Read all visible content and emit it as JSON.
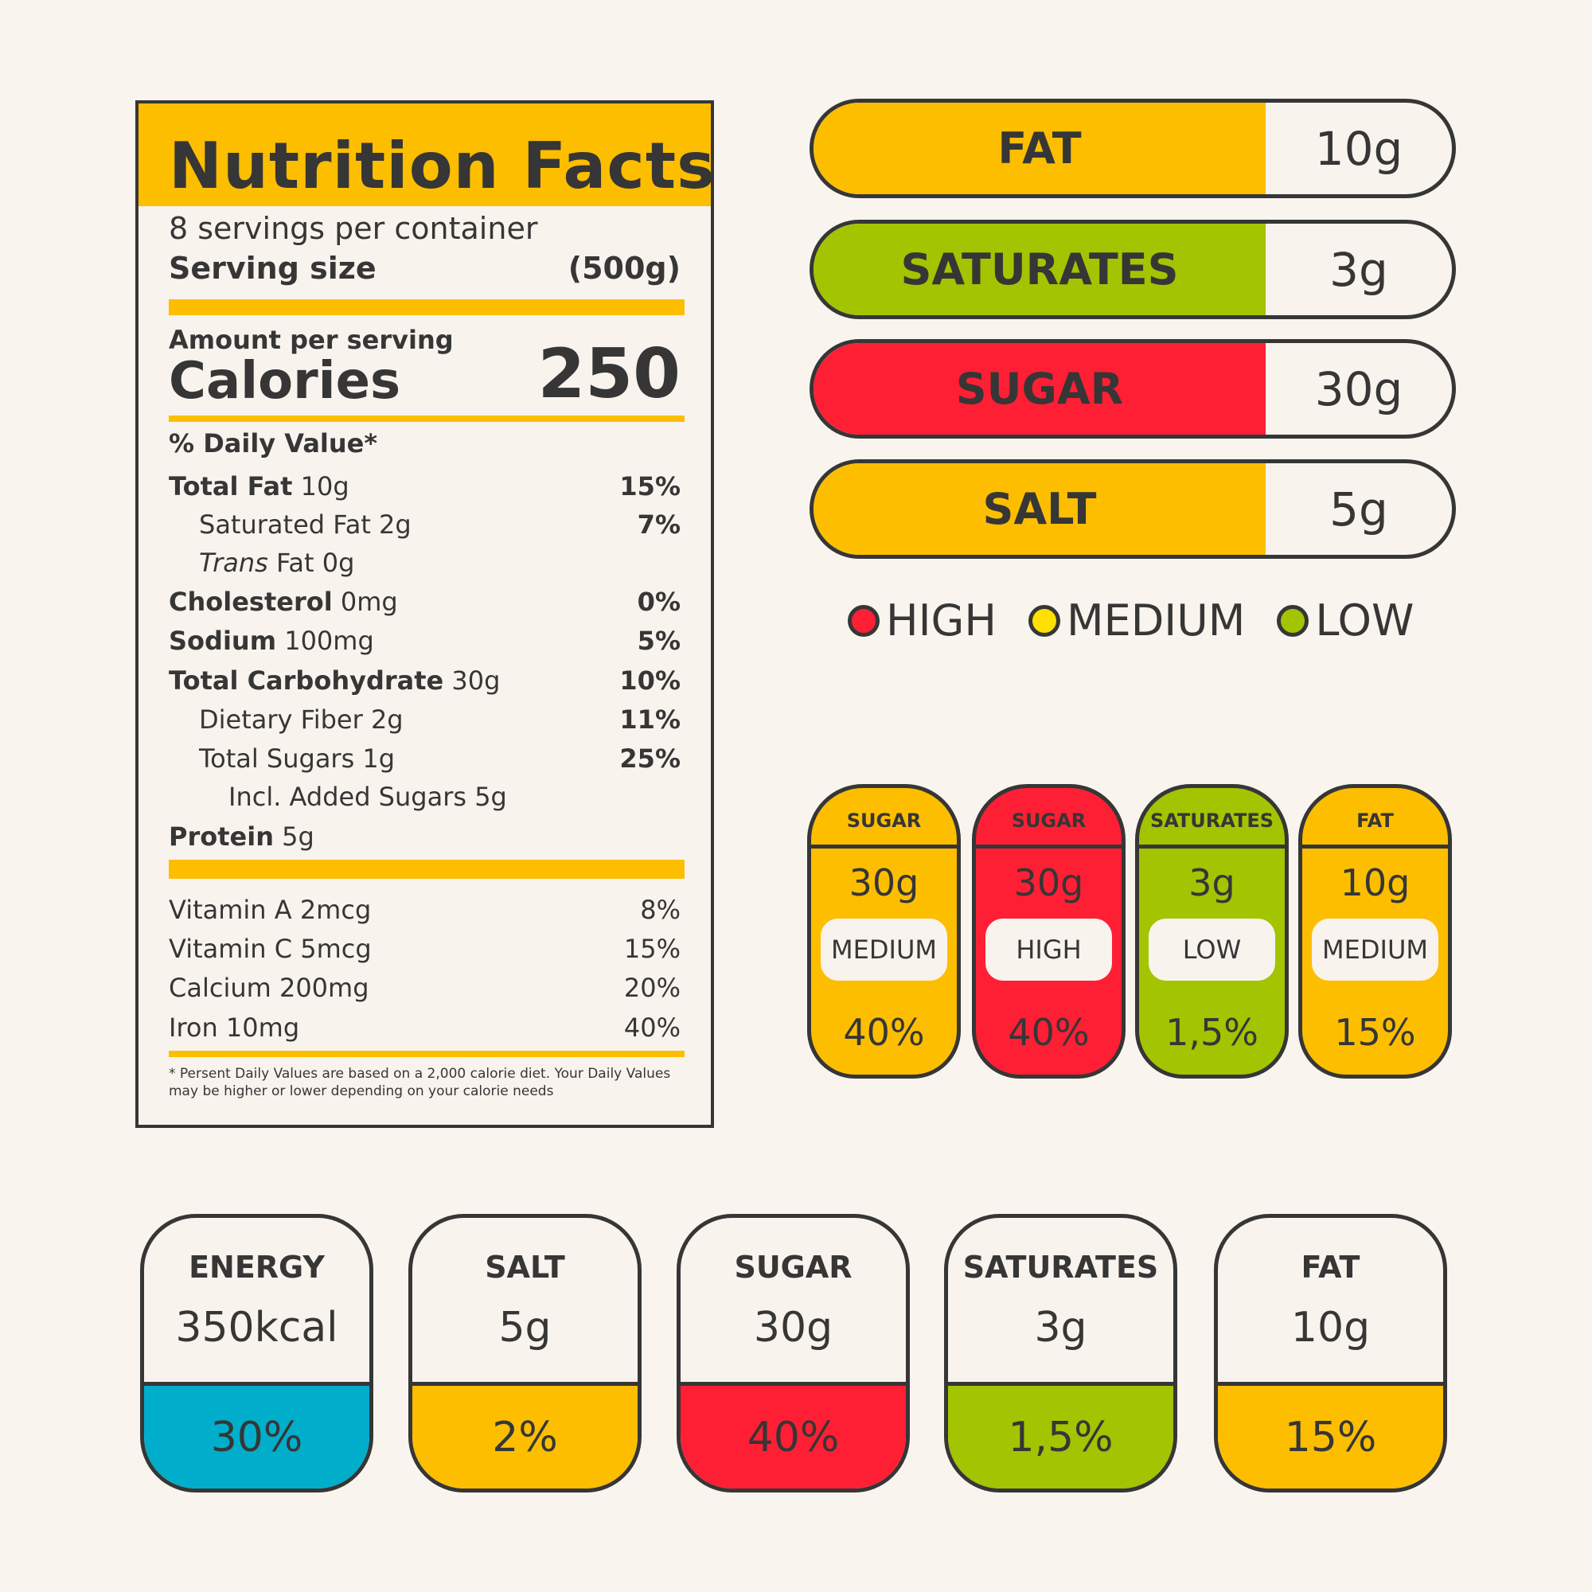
{
  "colors": {
    "yellow": "#FDBE00",
    "green": "#A3C400",
    "red": "#FF1F35",
    "blue": "#00AECB",
    "outline": "#363636",
    "background": "#FAF4EE"
  },
  "label": {
    "title": "Nutrition Facts",
    "servings": "8 servings per container",
    "serving_size_label": "Serving size",
    "serving_size_value": "(500g)",
    "amount_per_serving": "Amount per serving",
    "calories_label": "Calories",
    "calories_value": "250",
    "daily_value_header": "% Daily Value*",
    "nutrients": [
      {
        "name": "Total Fat",
        "amount": "10g",
        "dv": "15%",
        "bold": true,
        "indent": 0
      },
      {
        "name": "Saturated Fat",
        "amount": "2g",
        "dv": "7%",
        "bold": false,
        "indent": 1
      },
      {
        "name": "Trans",
        "name_suffix": "Fat",
        "amount": "0g",
        "dv": "",
        "bold": false,
        "indent": 1,
        "italic": true
      },
      {
        "name": "Cholesterol",
        "amount": "0mg",
        "dv": "0%",
        "bold": true,
        "indent": 0
      },
      {
        "name": "Sodium",
        "amount": "100mg",
        "dv": "5%",
        "bold": true,
        "indent": 0
      },
      {
        "name": "Total Carbohydrate",
        "amount": "30g",
        "dv": "10%",
        "bold": true,
        "indent": 0
      },
      {
        "name": "Dietary Fiber",
        "amount": "2g",
        "dv": "11%",
        "bold": false,
        "indent": 1
      },
      {
        "name": "Total Sugars",
        "amount": "1g",
        "dv": "25%",
        "bold": false,
        "indent": 1
      },
      {
        "name": "Incl. Added Sugars",
        "amount": "5g",
        "dv": "",
        "bold": false,
        "indent": 2
      },
      {
        "name": "Protein",
        "amount": "5g",
        "dv": "",
        "bold": true,
        "indent": 0
      }
    ],
    "vitamins": [
      {
        "name": "Vitamin A",
        "amount": "2mcg",
        "dv": "8%"
      },
      {
        "name": "Vitamin C",
        "amount": "5mcg",
        "dv": "15%"
      },
      {
        "name": "Calcium",
        "amount": "200mg",
        "dv": "20%"
      },
      {
        "name": "Iron",
        "amount": "10mg",
        "dv": "40%"
      }
    ],
    "footnote": "* Persent Daily Values are based on a 2,000 calorie diet. Your Daily Values may be higher or lower depending on your calorie needs"
  },
  "pills": [
    {
      "name": "FAT",
      "value": "10g",
      "color": "#FDBE00"
    },
    {
      "name": "SATURATES",
      "value": "3g",
      "color": "#A3C400"
    },
    {
      "name": "SUGAR",
      "value": "30g",
      "color": "#FF1F35"
    },
    {
      "name": "SALT",
      "value": "5g",
      "color": "#FDBE00"
    }
  ],
  "legend": [
    {
      "label": "HIGH",
      "color": "#FF1F35"
    },
    {
      "label": "MEDIUM",
      "color": "#FFE000"
    },
    {
      "label": "LOW",
      "color": "#A3C400"
    }
  ],
  "vertical_cards": [
    {
      "name": "SUGAR",
      "value": "30g",
      "level": "MEDIUM",
      "percent": "40%",
      "color": "#FDBE00"
    },
    {
      "name": "SUGAR",
      "value": "30g",
      "level": "HIGH",
      "percent": "40%",
      "color": "#FF1F35"
    },
    {
      "name": "SATURATES",
      "value": "3g",
      "level": "LOW",
      "percent": "1,5%",
      "color": "#A3C400"
    },
    {
      "name": "FAT",
      "value": "10g",
      "level": "MEDIUM",
      "percent": "15%",
      "color": "#FDBE00"
    }
  ],
  "bottom_cards": [
    {
      "name": "ENERGY",
      "value": "350kcal",
      "percent": "30%",
      "color": "#00AECB"
    },
    {
      "name": "SALT",
      "value": "5g",
      "percent": "2%",
      "color": "#FDBE00"
    },
    {
      "name": "SUGAR",
      "value": "30g",
      "percent": "40%",
      "color": "#FF1F35"
    },
    {
      "name": "SATURATES",
      "value": "3g",
      "percent": "1,5%",
      "color": "#A3C400"
    },
    {
      "name": "FAT",
      "value": "10g",
      "percent": "15%",
      "color": "#FDBE00"
    }
  ]
}
